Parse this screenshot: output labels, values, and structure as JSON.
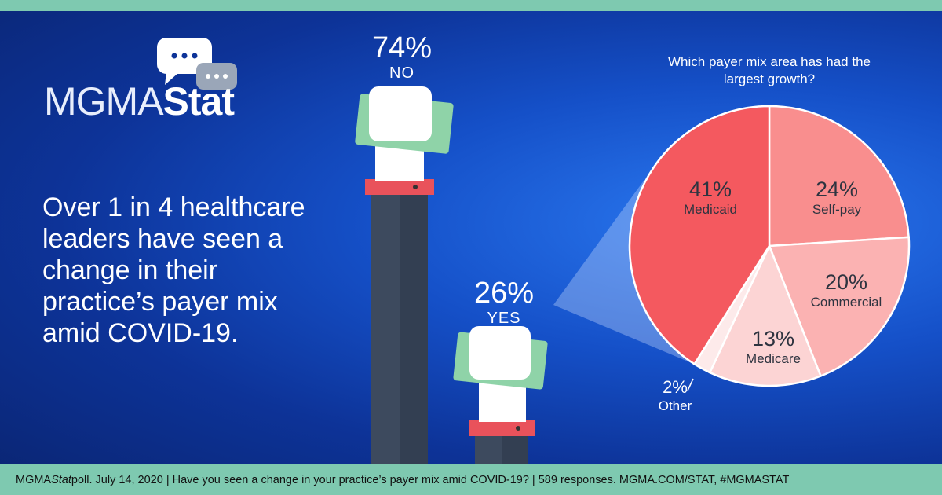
{
  "logo": {
    "text_light": "MGMA",
    "text_bold": "Stat"
  },
  "headline": "Over 1 in 4 healthcare leaders have seen a change in their practice’s payer mix amid COVID-19.",
  "poll": {
    "no_pct": "74%",
    "no_label": "NO",
    "yes_pct": "26%",
    "yes_label": "YES"
  },
  "footer": {
    "brand": "MGMA ",
    "stat": "Stat",
    "rest": " poll. July 14, 2020  |  Have you seen a change in your practice’s payer mix amid COVID-19?  |  589 responses. MGMA.COM/STAT, #MGMASTAT"
  },
  "colors": {
    "teal": "#7ec9b0",
    "arm": "#3d4a5e",
    "cuff": "#e9525b",
    "money": "#8fd3a8"
  },
  "chart_data": {
    "type": "pie",
    "title": "Which payer mix area has had the largest growth?",
    "slices": [
      {
        "label": "Self-pay",
        "value": 24,
        "text": "24%",
        "color": "#f98e8e"
      },
      {
        "label": "Commercial",
        "value": 20,
        "text": "20%",
        "color": "#fbb2b2"
      },
      {
        "label": "Medicare",
        "value": 13,
        "text": "13%",
        "color": "#fcd4d4"
      },
      {
        "label": "Other",
        "value": 2,
        "text": "2%",
        "color": "#fdeaea"
      },
      {
        "label": "Medicaid",
        "value": 41,
        "text": "41%",
        "color": "#f4595f"
      }
    ]
  }
}
